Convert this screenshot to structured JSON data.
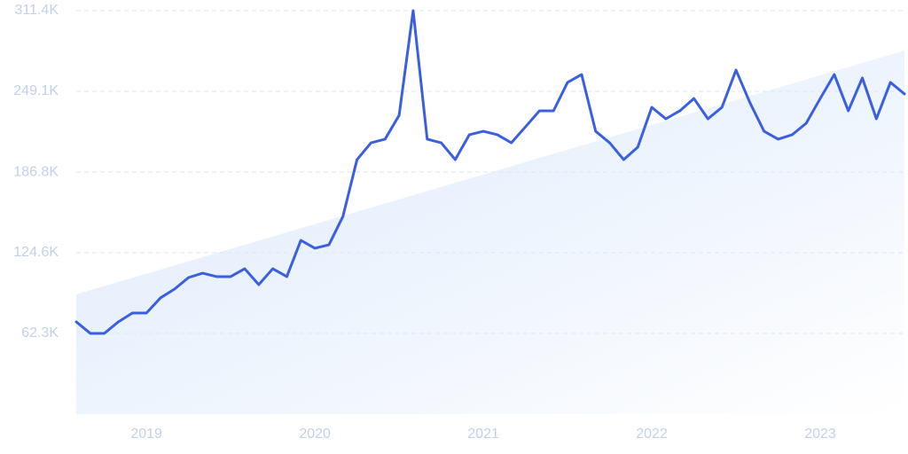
{
  "chart_data": {
    "type": "line",
    "categories": [
      null,
      null,
      null,
      null,
      null,
      "2019",
      null,
      null,
      null,
      null,
      null,
      null,
      null,
      null,
      null,
      null,
      null,
      "2020",
      null,
      null,
      null,
      null,
      null,
      null,
      null,
      null,
      null,
      null,
      null,
      "2021",
      null,
      null,
      null,
      null,
      null,
      null,
      null,
      null,
      null,
      null,
      null,
      "2022",
      null,
      null,
      null,
      null,
      null,
      null,
      null,
      null,
      null,
      null,
      null,
      "2023",
      null,
      null,
      null,
      null,
      null,
      null
    ],
    "series": [
      {
        "color": "#3a5fe0",
        "values": [
          71200,
          62300,
          62300,
          71200,
          78000,
          78000,
          89700,
          96500,
          105400,
          108800,
          106100,
          106100,
          112200,
          99900,
          112200,
          106100,
          134100,
          128000,
          130700,
          152600,
          196400,
          209400,
          212200,
          230600,
          311400,
          212200,
          209400,
          196400,
          215600,
          218300,
          215600,
          209400,
          221700,
          234100,
          234100,
          256000,
          262100,
          218300,
          209400,
          196400,
          206000,
          236800,
          227900,
          234100,
          243600,
          227900,
          236800,
          265500,
          240200,
          218300,
          212200,
          215600,
          224500,
          243600,
          262100,
          234100,
          259400,
          227900,
          256000,
          247100
        ]
      }
    ],
    "trend": {
      "color": "#dbe9fb",
      "values": [
        92400,
        280600
      ]
    },
    "ylim": [
      0,
      311400
    ],
    "yticks": [
      {
        "value": 62300,
        "label": "62.3K"
      },
      {
        "value": 124600,
        "label": "124.6K"
      },
      {
        "value": 186800,
        "label": "186.8K"
      },
      {
        "value": 249100,
        "label": "249.1K"
      },
      {
        "value": 311400,
        "label": "311.4K"
      }
    ],
    "grid": true
  }
}
